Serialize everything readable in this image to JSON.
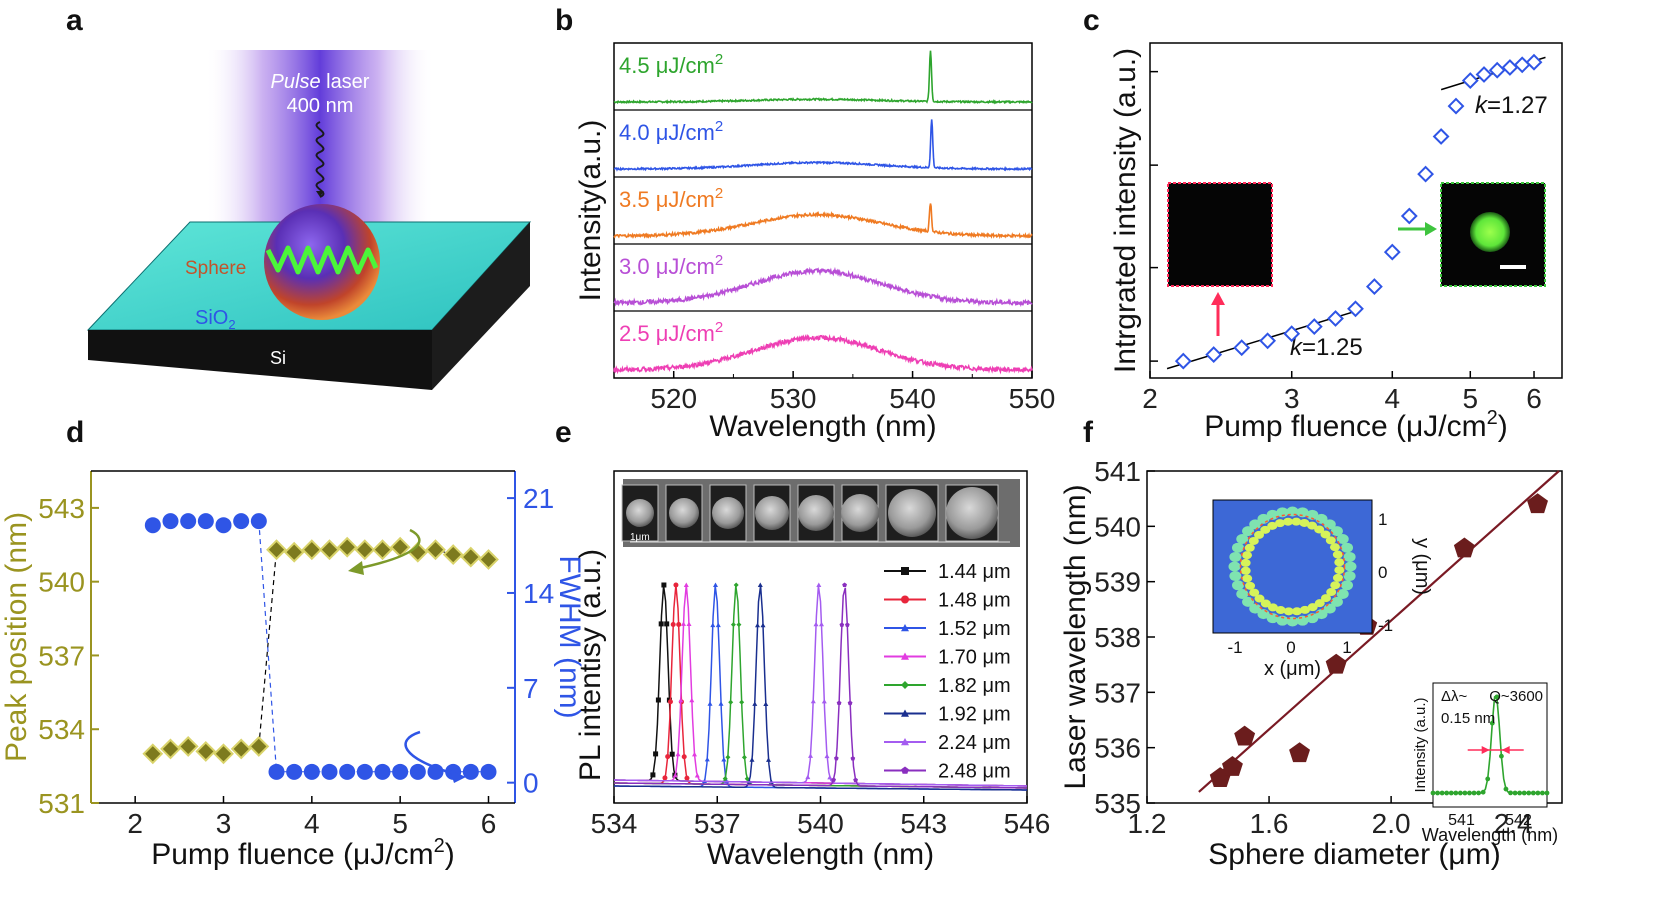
{
  "colors": {
    "olive": "#7d7a1e",
    "olive_text": "#9a9420",
    "blue": "#2f55e6",
    "axis": "#000000",
    "fit": "#7a1a24",
    "pink": "#ff2d5a",
    "green": "#3ec43e"
  },
  "panels": {
    "a": {
      "label": "a",
      "pulse_word": "Pulse",
      "laser_word": " laser",
      "wavelength": "400 nm",
      "sphere": "Sphere",
      "sio2": "SiO",
      "sio2_sub": "2",
      "si": "Si"
    },
    "b": {
      "label": "b"
    },
    "c": {
      "label": "c"
    },
    "d": {
      "label": "d"
    },
    "e": {
      "label": "e",
      "scalebar": "1μm"
    },
    "f": {
      "label": "f",
      "inset_dl": "Δλ~",
      "inset_dl_val": "0.15 nm",
      "inset_q": "Q~3600"
    }
  },
  "chart_data": [
    {
      "panel": "b",
      "type": "line",
      "xlabel": "Wavelength (nm)",
      "ylabel": "Intensity(a.u.)",
      "xlim": [
        515,
        550
      ],
      "xticks": [
        "520",
        "530",
        "540",
        "550"
      ],
      "series": [
        {
          "name": "4.5 μJ/cm",
          "sup": "2",
          "color": "#2ea52e",
          "broad_amp": 0.05,
          "peak_amp": 0.95,
          "peak_x": 541.5,
          "noise": 0.03
        },
        {
          "name": "4.0 μJ/cm",
          "sup": "2",
          "color": "#2f55e6",
          "broad_amp": 0.12,
          "peak_amp": 0.9,
          "peak_x": 541.6,
          "noise": 0.03
        },
        {
          "name": "3.5 μJ/cm",
          "sup": "2",
          "color": "#ef7a22",
          "broad_amp": 0.4,
          "peak_amp": 0.55,
          "peak_x": 541.5,
          "noise": 0.05
        },
        {
          "name": "3.0 μJ/cm",
          "sup": "2",
          "color": "#b84fd6",
          "broad_amp": 0.6,
          "peak_amp": 0,
          "peak_x": 541.5,
          "noise": 0.08
        },
        {
          "name": "2.5 μJ/cm",
          "sup": "2",
          "color": "#ee3fb4",
          "broad_amp": 0.6,
          "peak_amp": 0,
          "peak_x": 541.5,
          "noise": 0.08
        }
      ]
    },
    {
      "panel": "c",
      "type": "scatter",
      "xlabel": "Pump fluence (μJ/cm",
      "xlabel_sup": "2",
      "xlabel_end": ")",
      "ylabel": "Intrgrated intensity (a.u.)",
      "xscale": "log",
      "xlim": [
        2,
        6.5
      ],
      "xticks": [
        "2",
        "3",
        "4",
        "5",
        "6"
      ],
      "x": [
        2.2,
        2.4,
        2.6,
        2.8,
        3.0,
        3.2,
        3.4,
        3.6,
        3.8,
        4.0,
        4.2,
        4.4,
        4.6,
        4.8,
        5.0,
        5.2,
        5.4,
        5.6,
        5.8,
        6.0
      ],
      "y": [
        1.0,
        1.08,
        1.17,
        1.27,
        1.38,
        1.5,
        1.65,
        1.85,
        2.4,
        3.6,
        5.5,
        9.0,
        14.0,
        20.0,
        27.0,
        29.0,
        30.5,
        31.5,
        32.5,
        33.5
      ],
      "fits": [
        {
          "label": "k=1.25",
          "k": 1.25,
          "x_range": [
            2.1,
            3.65
          ]
        },
        {
          "label": "k=1.27",
          "k": 1.27,
          "x_range": [
            4.6,
            6.2
          ]
        }
      ]
    },
    {
      "panel": "d",
      "type": "scatter",
      "xlabel": "Pump fluence (μJ/cm",
      "xlabel_sup": "2",
      "xlabel_end": ")",
      "ylabel_left": "Peak position (nm)",
      "ylabel_right": "FWHM (nm)",
      "xlim": [
        1.5,
        6.3
      ],
      "ylim_left": [
        531,
        544.5
      ],
      "ylim_right": [
        -1.5,
        23
      ],
      "xticks": [
        "2",
        "3",
        "4",
        "5",
        "6"
      ],
      "yticks_left": [
        "531",
        "534",
        "537",
        "540",
        "543"
      ],
      "yticks_right": [
        "0",
        "7",
        "14",
        "21"
      ],
      "series": [
        {
          "name": "Peak position",
          "axis": "left",
          "x": [
            2.2,
            2.4,
            2.6,
            2.8,
            3.0,
            3.2,
            3.4,
            3.6,
            3.8,
            4.0,
            4.2,
            4.4,
            4.6,
            4.8,
            5.0,
            5.2,
            5.4,
            5.6,
            5.8,
            6.0
          ],
          "y": [
            533.0,
            533.2,
            533.3,
            533.1,
            533.0,
            533.2,
            533.3,
            541.3,
            541.2,
            541.3,
            541.3,
            541.4,
            541.3,
            541.3,
            541.4,
            541.2,
            541.3,
            541.1,
            541.0,
            540.9
          ]
        },
        {
          "name": "FWHM",
          "axis": "right",
          "x": [
            2.2,
            2.4,
            2.6,
            2.8,
            3.0,
            3.2,
            3.4,
            3.6,
            3.8,
            4.0,
            4.2,
            4.4,
            4.6,
            4.8,
            5.0,
            5.2,
            5.4,
            5.6,
            5.8,
            6.0
          ],
          "y": [
            19.0,
            19.3,
            19.3,
            19.3,
            19.0,
            19.3,
            19.3,
            0.8,
            0.8,
            0.8,
            0.8,
            0.8,
            0.8,
            0.8,
            0.8,
            0.8,
            0.8,
            0.8,
            0.8,
            0.8
          ]
        }
      ]
    },
    {
      "panel": "e",
      "type": "line",
      "xlabel": "Wavelength (nm)",
      "ylabel": "PL intentisy (a.u.)",
      "xlim": [
        534,
        546
      ],
      "xticks": [
        "534",
        "537",
        "540",
        "543",
        "546"
      ],
      "series": [
        {
          "name": "1.44 μm",
          "color": "#111111",
          "peak": 535.45,
          "marker": "square"
        },
        {
          "name": "1.48 μm",
          "color": "#e8253b",
          "peak": 535.8,
          "marker": "circle"
        },
        {
          "name": "1.52 μm",
          "color": "#2f55e6",
          "peak": 536.95,
          "marker": "triangle"
        },
        {
          "name": "1.70 μm",
          "color": "#e23ce0",
          "peak": 536.1,
          "marker": "triangle"
        },
        {
          "name": "1.82 μm",
          "color": "#2ea52e",
          "peak": 537.55,
          "marker": "diamond"
        },
        {
          "name": "1.92 μm",
          "color": "#1a2f8f",
          "peak": 538.25,
          "marker": "triangle"
        },
        {
          "name": "2.24 μm",
          "color": "#a45cf0",
          "peak": 539.95,
          "marker": "triangle"
        },
        {
          "name": "2.48 μm",
          "color": "#8a2fbf",
          "peak": 540.7,
          "marker": "pentagon"
        }
      ]
    },
    {
      "panel": "f",
      "type": "scatter",
      "xlabel": "Sphere diameter (μm)",
      "ylabel": "Laser wavelength (nm)",
      "xlim": [
        1.2,
        2.56
      ],
      "ylim": [
        535,
        541
      ],
      "xticks": [
        "1.2",
        "1.6",
        "2.0",
        "2.4"
      ],
      "yticks": [
        "535",
        "536",
        "537",
        "538",
        "539",
        "540",
        "541"
      ],
      "x": [
        1.44,
        1.48,
        1.52,
        1.7,
        1.82,
        1.92,
        2.24,
        2.48
      ],
      "y": [
        535.45,
        535.65,
        536.2,
        535.9,
        537.5,
        538.2,
        539.6,
        540.4
      ],
      "fit": {
        "x_range": [
          1.37,
          2.55
        ],
        "y_range": [
          535.2,
          541.0
        ]
      },
      "inset_mode": {
        "xlabel": "x (μm)",
        "ylabel": "y (μm)",
        "xticks": [
          "-1",
          "0",
          "1"
        ],
        "yticks": [
          "1",
          "0",
          "-1"
        ]
      },
      "inset_spectrum": {
        "xlabel": "Wavelength (nm)",
        "ylabel": "Intensity (a.u.)",
        "xlim": [
          540.5,
          542.5
        ],
        "xticks": [
          "541",
          "542"
        ],
        "peak": 541.6,
        "fwhm": 0.15
      }
    }
  ]
}
